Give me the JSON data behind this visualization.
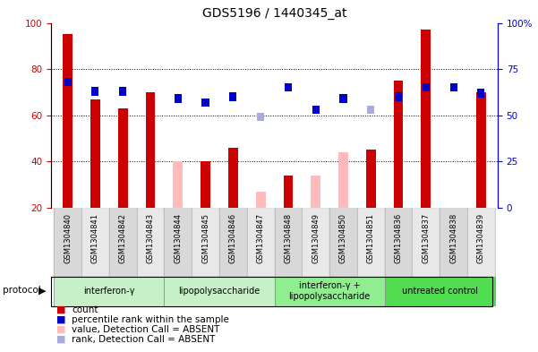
{
  "title": "GDS5196 / 1440345_at",
  "samples": [
    "GSM1304840",
    "GSM1304841",
    "GSM1304842",
    "GSM1304843",
    "GSM1304844",
    "GSM1304845",
    "GSM1304846",
    "GSM1304847",
    "GSM1304848",
    "GSM1304849",
    "GSM1304850",
    "GSM1304851",
    "GSM1304836",
    "GSM1304837",
    "GSM1304838",
    "GSM1304839"
  ],
  "red_bars": [
    95,
    67,
    63,
    70,
    null,
    40,
    46,
    null,
    34,
    null,
    null,
    45,
    75,
    97,
    null,
    70
  ],
  "pink_bars": [
    null,
    null,
    null,
    null,
    40,
    null,
    null,
    27,
    null,
    34,
    44,
    null,
    null,
    null,
    null,
    null
  ],
  "blue_squares": [
    68,
    63,
    63,
    null,
    59,
    57,
    60,
    null,
    65,
    53,
    59,
    null,
    60,
    65,
    65,
    62
  ],
  "lightblue_sq": [
    null,
    null,
    null,
    null,
    null,
    null,
    null,
    49,
    null,
    null,
    null,
    53,
    null,
    null,
    null,
    null
  ],
  "groups": [
    {
      "label": "interferon-γ",
      "start": 0,
      "end": 3,
      "color": "#d0f0d0"
    },
    {
      "label": "lipopolysaccharide",
      "start": 4,
      "end": 7,
      "color": "#d0f0d0"
    },
    {
      "label": "interferon-γ +\nlipopolysaccharide",
      "start": 8,
      "end": 11,
      "color": "#90ee90"
    },
    {
      "label": "untreated control",
      "start": 12,
      "end": 15,
      "color": "#50dd50"
    }
  ],
  "ylim_left": [
    20,
    100
  ],
  "ylim_right": [
    0,
    100
  ],
  "yticks_left": [
    20,
    40,
    60,
    80,
    100
  ],
  "yticks_right": [
    0,
    25,
    50,
    75,
    100
  ],
  "ytick_labels_right": [
    "0",
    "25",
    "50",
    "75",
    "100%"
  ],
  "left_color": "#cc0000",
  "right_color": "#0000cc",
  "bar_width": 0.35,
  "sq_half": 1.8,
  "gridlines": [
    40,
    60,
    80
  ],
  "legend_items": [
    {
      "color": "#cc0000",
      "label": "count"
    },
    {
      "color": "#0000cc",
      "label": "percentile rank within the sample"
    },
    {
      "color": "#ffbbbb",
      "label": "value, Detection Call = ABSENT"
    },
    {
      "color": "#aaaadd",
      "label": "rank, Detection Call = ABSENT"
    }
  ]
}
